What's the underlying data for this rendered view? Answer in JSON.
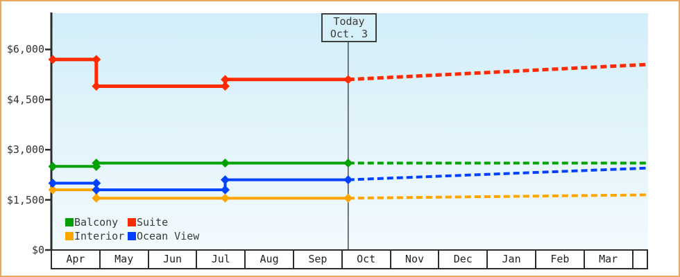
{
  "chart_data": {
    "type": "line",
    "title": "",
    "ylabel": "",
    "xlabel": "",
    "ylim": [
      0,
      6600
    ],
    "grid": false,
    "legend_position": "bottom-left",
    "y_ticks": [
      {
        "value": 6000,
        "label": "$6,000"
      },
      {
        "value": 4500,
        "label": "$4,500"
      },
      {
        "value": 3000,
        "label": "$3,000"
      },
      {
        "value": 1500,
        "label": "$1,500"
      },
      {
        "value": 0,
        "label": "$0"
      }
    ],
    "x_months": [
      "Apr",
      "May",
      "Jun",
      "Jul",
      "Aug",
      "Sep",
      "Oct",
      "Nov",
      "Dec",
      "Jan",
      "Feb",
      "Mar"
    ],
    "x_unit_note": "x coordinates below are in months since Apr 1; dashed segments are the forecast after today",
    "today": {
      "line1": "Today",
      "line2": "Oct. 3",
      "x_months_from_apr": 6.1
    },
    "series": [
      {
        "name": "Balcony",
        "color": "#00a000",
        "solid": [
          [
            0,
            2500
          ],
          [
            0.9,
            2500
          ],
          [
            0.9,
            2600
          ],
          [
            6.1,
            2600
          ]
        ],
        "dashed": [
          [
            6.1,
            2600
          ],
          [
            12.28,
            2600
          ]
        ],
        "markers": [
          [
            0,
            2500
          ],
          [
            0.9,
            2500
          ],
          [
            0.9,
            2600
          ],
          [
            3.56,
            2600
          ],
          [
            6.1,
            2600
          ]
        ]
      },
      {
        "name": "Suite",
        "color": "#ff2a00",
        "solid": [
          [
            0,
            5700
          ],
          [
            0.9,
            5700
          ],
          [
            0.9,
            4900
          ],
          [
            3.56,
            4900
          ],
          [
            3.56,
            5100
          ],
          [
            6.1,
            5100
          ]
        ],
        "dashed": [
          [
            6.1,
            5100
          ],
          [
            12.28,
            5550
          ]
        ],
        "markers": [
          [
            0,
            5700
          ],
          [
            0.9,
            5700
          ],
          [
            0.9,
            4900
          ],
          [
            3.56,
            4900
          ],
          [
            3.56,
            5100
          ],
          [
            6.1,
            5100
          ]
        ]
      },
      {
        "name": "Interior",
        "color": "#ffa500",
        "solid": [
          [
            0,
            1800
          ],
          [
            0.9,
            1800
          ],
          [
            0.9,
            1550
          ],
          [
            6.1,
            1550
          ]
        ],
        "dashed": [
          [
            6.1,
            1550
          ],
          [
            12.28,
            1650
          ]
        ],
        "markers": [
          [
            0,
            1800
          ],
          [
            0.9,
            1800
          ],
          [
            0.9,
            1550
          ],
          [
            3.56,
            1550
          ],
          [
            6.1,
            1550
          ]
        ]
      },
      {
        "name": "Ocean View",
        "color": "#0040ff",
        "solid": [
          [
            0,
            2000
          ],
          [
            0.9,
            2000
          ],
          [
            0.9,
            1800
          ],
          [
            3.56,
            1800
          ],
          [
            3.56,
            2100
          ],
          [
            6.1,
            2100
          ]
        ],
        "dashed": [
          [
            6.1,
            2100
          ],
          [
            12.28,
            2450
          ]
        ],
        "markers": [
          [
            0,
            2000
          ],
          [
            0.9,
            2000
          ],
          [
            0.9,
            1800
          ],
          [
            3.56,
            1800
          ],
          [
            3.56,
            2100
          ],
          [
            6.1,
            2100
          ]
        ]
      }
    ],
    "theme": {
      "page_border": "#eba75e",
      "plot_bg_top": "#d2eef9",
      "plot_bg_bottom": "#f2fafd",
      "axis_color": "#2d2d2d",
      "text_color": "#3a3a3a",
      "today_line_color": "#4a4a4a"
    }
  }
}
